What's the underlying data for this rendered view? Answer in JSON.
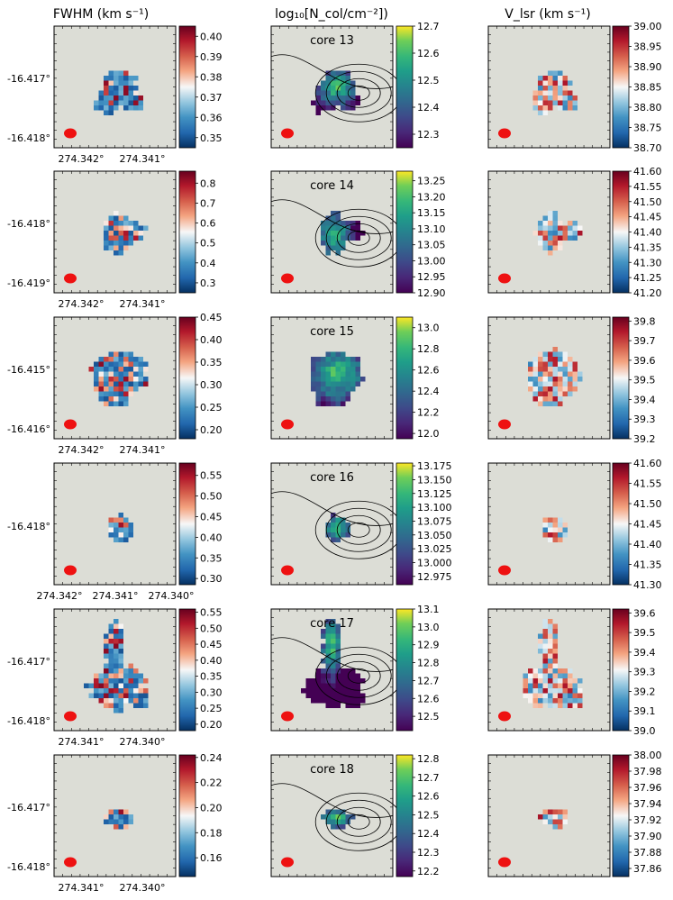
{
  "column_titles": {
    "fwhm": "FWHM (km s⁻¹)",
    "ncol": "log₁₀[N_col/cm⁻²])",
    "vlsr": "V_lsr (km s⁻¹)"
  },
  "colors": {
    "panel_bg": "#dcddd6",
    "beam": "#ee1111",
    "contour": "#000000"
  },
  "chart_data": [
    {
      "type": "heatmap",
      "core": "core 13",
      "dec_ticks": [
        "-16.417°",
        "-16.418°"
      ],
      "ra_ticks": [
        "274.342°",
        "274.341°"
      ],
      "fwhm": {
        "colorbar_ticks": [
          "0.35",
          "0.36",
          "0.37",
          "0.38",
          "0.39",
          "0.40"
        ],
        "range": [
          0.345,
          0.405
        ]
      },
      "ncol": {
        "colorbar_ticks": [
          "12.3",
          "12.4",
          "12.5",
          "12.6",
          "12.7"
        ],
        "range": [
          12.25,
          12.7
        ]
      },
      "vlsr": {
        "colorbar_ticks": [
          "38.70",
          "38.75",
          "38.80",
          "38.85",
          "38.90",
          "38.95",
          "39.00"
        ],
        "range": [
          38.7,
          39.0
        ]
      },
      "has_contours": true
    },
    {
      "type": "heatmap",
      "core": "core 14",
      "dec_ticks": [
        "-16.418°",
        "-16.419°"
      ],
      "ra_ticks": [
        "274.342°",
        "274.341°"
      ],
      "fwhm": {
        "colorbar_ticks": [
          "0.3",
          "0.4",
          "0.5",
          "0.6",
          "0.7",
          "0.8"
        ],
        "range": [
          0.25,
          0.86
        ]
      },
      "ncol": {
        "colorbar_ticks": [
          "12.90",
          "12.95",
          "13.00",
          "13.05",
          "13.10",
          "13.15",
          "13.20",
          "13.25"
        ],
        "range": [
          12.9,
          13.28
        ]
      },
      "vlsr": {
        "colorbar_ticks": [
          "41.20",
          "41.25",
          "41.30",
          "41.35",
          "41.40",
          "41.45",
          "41.50",
          "41.55",
          "41.60"
        ],
        "range": [
          41.2,
          41.6
        ]
      },
      "has_contours": true
    },
    {
      "type": "heatmap",
      "core": "core 15",
      "dec_ticks": [
        "-16.415°",
        "-16.416°"
      ],
      "ra_ticks": [
        "274.342°",
        "274.341°"
      ],
      "fwhm": {
        "colorbar_ticks": [
          "0.20",
          "0.25",
          "0.30",
          "0.35",
          "0.40",
          "0.45"
        ],
        "range": [
          0.18,
          0.45
        ]
      },
      "ncol": {
        "colorbar_ticks": [
          "12.0",
          "12.2",
          "12.4",
          "12.6",
          "12.8",
          "13.0"
        ],
        "range": [
          11.95,
          13.1
        ]
      },
      "vlsr": {
        "colorbar_ticks": [
          "39.2",
          "39.3",
          "39.4",
          "39.5",
          "39.6",
          "39.7",
          "39.8"
        ],
        "range": [
          39.2,
          39.82
        ]
      },
      "has_contours": false
    },
    {
      "type": "heatmap",
      "core": "core 16",
      "dec_ticks": [
        "-16.418°"
      ],
      "ra_ticks": [
        "274.342°",
        "274.341°",
        "274.340°"
      ],
      "fwhm": {
        "colorbar_ticks": [
          "0.30",
          "0.35",
          "0.40",
          "0.45",
          "0.50",
          "0.55"
        ],
        "range": [
          0.285,
          0.58
        ]
      },
      "ncol": {
        "colorbar_ticks": [
          "12.975",
          "13.000",
          "13.025",
          "13.050",
          "13.075",
          "13.100",
          "13.125",
          "13.150",
          "13.175"
        ],
        "range": [
          12.96,
          13.18
        ]
      },
      "vlsr": {
        "colorbar_ticks": [
          "41.30",
          "41.35",
          "41.40",
          "41.45",
          "41.50",
          "41.55",
          "41.60"
        ],
        "range": [
          41.3,
          41.6
        ]
      },
      "has_contours": true
    },
    {
      "type": "heatmap",
      "core": "core 17",
      "dec_ticks": [
        "-16.417°",
        "-16.418°"
      ],
      "ra_ticks": [
        "274.341°",
        "274.340°"
      ],
      "fwhm": {
        "colorbar_ticks": [
          "0.20",
          "0.25",
          "0.30",
          "0.35",
          "0.40",
          "0.45",
          "0.50",
          "0.55"
        ],
        "range": [
          0.18,
          0.56
        ]
      },
      "ncol": {
        "colorbar_ticks": [
          "12.5",
          "12.6",
          "12.7",
          "12.8",
          "12.9",
          "13.0",
          "13.1"
        ],
        "range": [
          12.42,
          13.1
        ]
      },
      "vlsr": {
        "colorbar_ticks": [
          "39.0",
          "39.1",
          "39.2",
          "39.3",
          "39.4",
          "39.5",
          "39.6"
        ],
        "range": [
          39.0,
          39.62
        ]
      },
      "has_contours": true
    },
    {
      "type": "heatmap",
      "core": "core 18",
      "dec_ticks": [
        "-16.417°",
        "-16.418°"
      ],
      "ra_ticks": [
        "274.341°",
        "274.340°"
      ],
      "fwhm": {
        "colorbar_ticks": [
          "0.16",
          "0.18",
          "0.20",
          "0.22",
          "0.24"
        ],
        "range": [
          0.145,
          0.242
        ]
      },
      "ncol": {
        "colorbar_ticks": [
          "12.2",
          "12.3",
          "12.4",
          "12.5",
          "12.6",
          "12.7",
          "12.8"
        ],
        "range": [
          12.17,
          12.82
        ]
      },
      "vlsr": {
        "colorbar_ticks": [
          "37.86",
          "37.88",
          "37.90",
          "37.92",
          "37.94",
          "37.96",
          "37.98",
          "38.00"
        ],
        "range": [
          37.85,
          38.0
        ]
      },
      "has_contours": true
    }
  ]
}
